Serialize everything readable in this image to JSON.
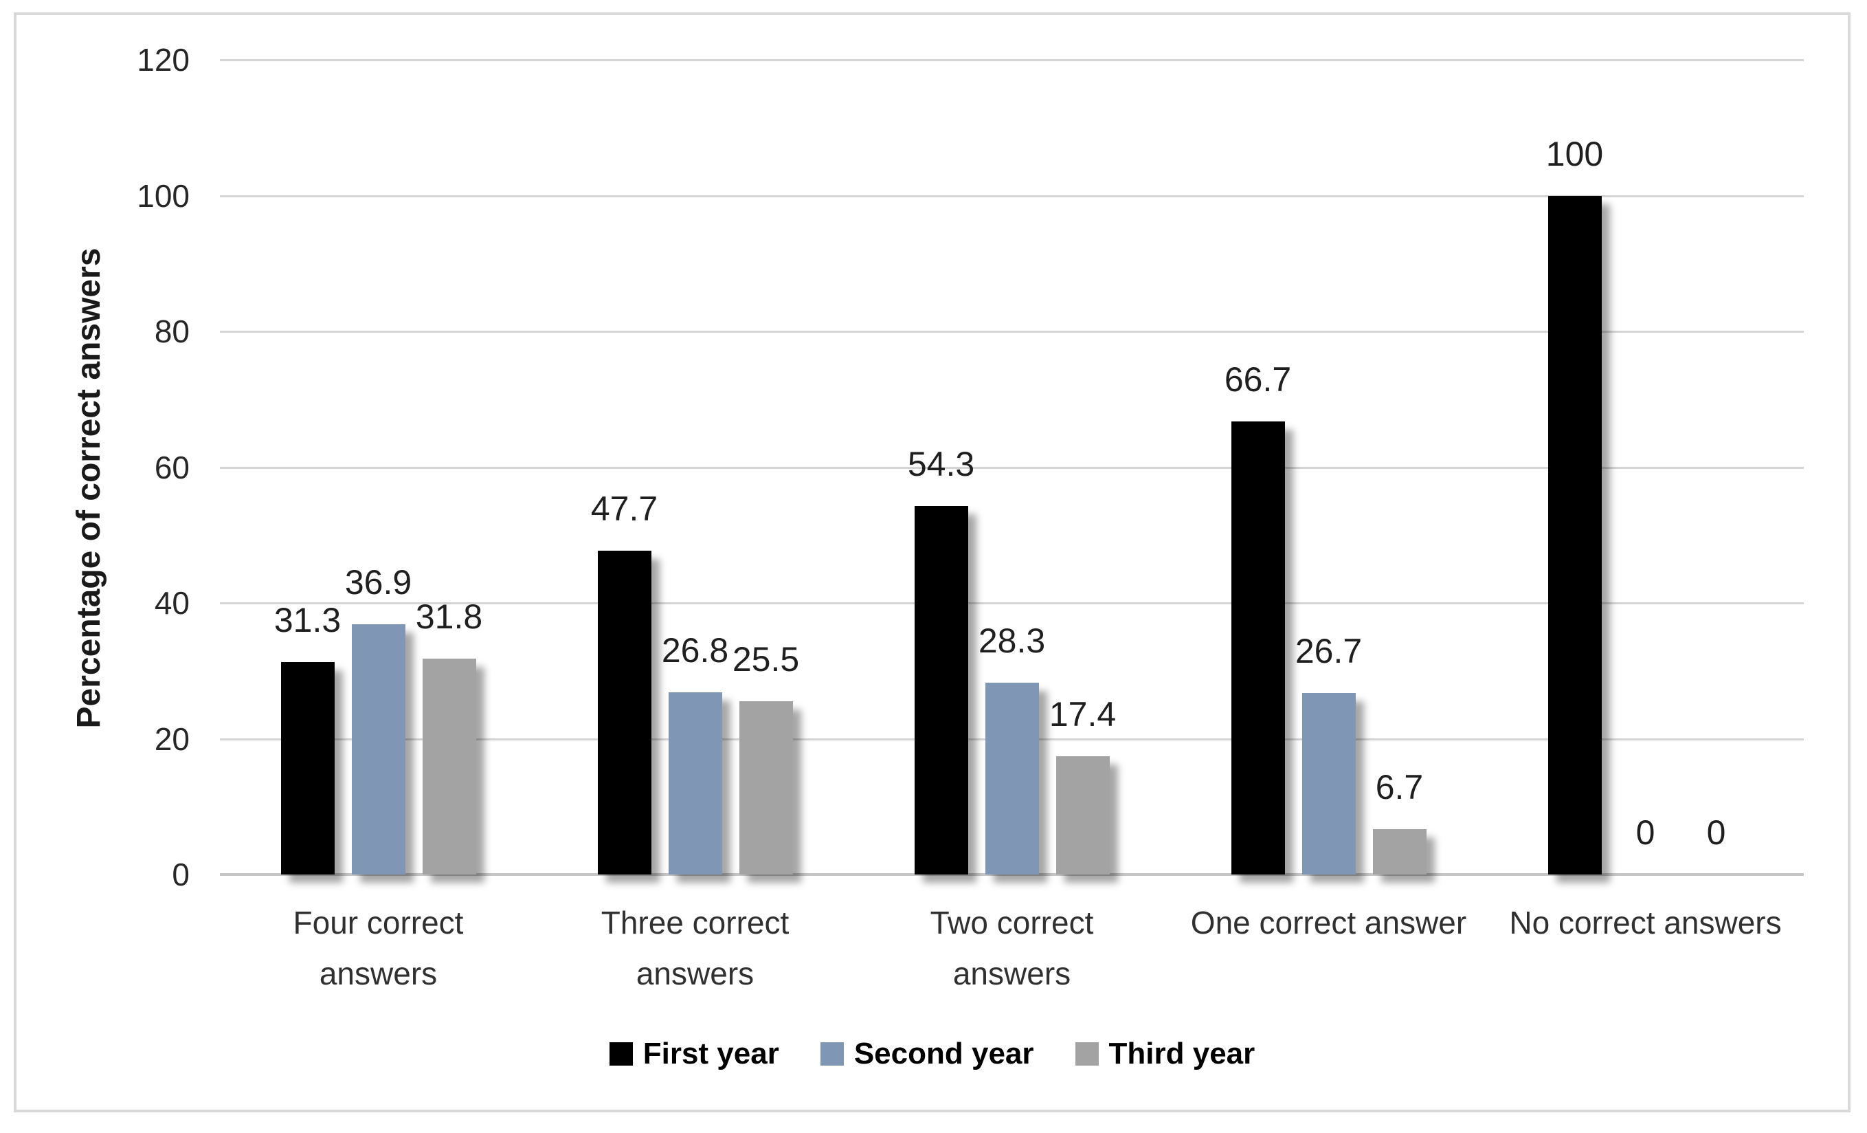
{
  "chart_data": {
    "type": "bar",
    "title": "",
    "categories": [
      "Four correct answers",
      "Three correct answers",
      "Two correct answers",
      "One correct answer",
      "No correct answers"
    ],
    "category_lines": [
      [
        "Four correct",
        "answers"
      ],
      [
        "Three correct",
        "answers"
      ],
      [
        "Two correct",
        "answers"
      ],
      [
        "One correct answer"
      ],
      [
        "No correct answers"
      ]
    ],
    "series": [
      {
        "name": "First year",
        "color": "#000000",
        "values": [
          31.3,
          47.7,
          54.3,
          66.7,
          100
        ]
      },
      {
        "name": "Second year",
        "color": "#7F96B4",
        "values": [
          36.9,
          26.8,
          28.3,
          26.7,
          0
        ]
      },
      {
        "name": "Third year",
        "color": "#A3A3A3",
        "values": [
          31.8,
          25.5,
          17.4,
          6.7,
          0
        ]
      }
    ],
    "xlabel": "",
    "ylabel": "Percentage of correct answers",
    "ylim": [
      0,
      120
    ],
    "yticks": [
      0,
      20,
      40,
      60,
      80,
      100,
      120
    ],
    "grid": true,
    "data_labels": true,
    "legend_position": "bottom",
    "legend": [
      "First year",
      "Second year",
      "Third year"
    ]
  },
  "style": {
    "background": "#FFFFFF",
    "frame_border": "#D9D9D9",
    "gridline": "#D4D4D4",
    "axis_line": "#C6C6C6",
    "tick_label": "#262626",
    "data_label": "#1F1F1F",
    "bar_shadow": "rgba(0,0,0,0.35)"
  }
}
